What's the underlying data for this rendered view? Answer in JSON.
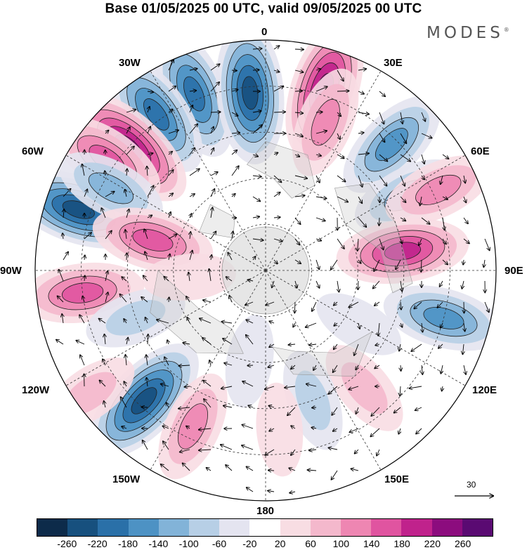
{
  "title": "Base 01/05/2025 00 UTC, valid 09/05/2025 00 UTC",
  "brand": "MODES",
  "brand_mark": "®",
  "meridian_labels": {
    "m0": "0",
    "m30e": "30E",
    "m60e": "60E",
    "m90e": "90E",
    "m120e": "120E",
    "m150e": "150E",
    "m180": "180",
    "m150w": "150W",
    "m120w": "120W",
    "m90w": "90W",
    "m60w": "60W",
    "m30w": "30W"
  },
  "vector_scale": {
    "value": "30"
  },
  "colorbar": {
    "colors": [
      "#0d2b4a",
      "#17507e",
      "#2a70a8",
      "#4d92c4",
      "#82b3d8",
      "#b7cfe6",
      "#e4e4f0",
      "#ffffff",
      "#f8dde3",
      "#f4b8cc",
      "#ee86b2",
      "#e054a0",
      "#c0228c",
      "#8c0c7e",
      "#5a0a72"
    ],
    "tick_labels": [
      "-260",
      "-220",
      "-180",
      "-140",
      "-100",
      "-60",
      "-20",
      "20",
      "60",
      "100",
      "140",
      "180",
      "220",
      "260"
    ]
  },
  "anomaly_centers": [
    {
      "lon": -22,
      "lat": 28,
      "value": -200
    },
    {
      "lon": -5,
      "lat": 32,
      "value": -250
    },
    {
      "lon": -35,
      "lat": 28,
      "value": -180
    },
    {
      "lon": -48,
      "lat": 30,
      "value": 230
    },
    {
      "lon": -55,
      "lat": 27,
      "value": 170
    },
    {
      "lon": 18,
      "lat": 28,
      "value": 230
    },
    {
      "lon": 22,
      "lat": 38,
      "value": 120
    },
    {
      "lon": 45,
      "lat": 32,
      "value": -160
    },
    {
      "lon": 62,
      "lat": 38,
      "value": -120
    },
    {
      "lon": 65,
      "lat": 28,
      "value": 120
    },
    {
      "lon": 82,
      "lat": 45,
      "value": 190
    },
    {
      "lon": 105,
      "lat": 30,
      "value": -170
    },
    {
      "lon": -72,
      "lat": 26,
      "value": -230
    },
    {
      "lon": -62,
      "lat": 33,
      "value": -130
    },
    {
      "lon": -75,
      "lat": 52,
      "value": 150
    },
    {
      "lon": -97,
      "lat": 30,
      "value": 170
    },
    {
      "lon": -110,
      "lat": 45,
      "value": -90
    },
    {
      "lon": -137,
      "lat": 32,
      "value": -220
    },
    {
      "lon": -155,
      "lat": 34,
      "value": 130
    },
    {
      "lon": -125,
      "lat": 20,
      "value": 80
    },
    {
      "lon": -170,
      "lat": 60,
      "value": -50
    },
    {
      "lon": 140,
      "lat": 40,
      "value": 70
    },
    {
      "lon": 160,
      "lat": 45,
      "value": -60
    },
    {
      "lon": 120,
      "lat": 55,
      "value": -50
    },
    {
      "lon": -95,
      "lat": 65,
      "value": 40
    },
    {
      "lon": 175,
      "lat": 38,
      "value": 40
    }
  ]
}
